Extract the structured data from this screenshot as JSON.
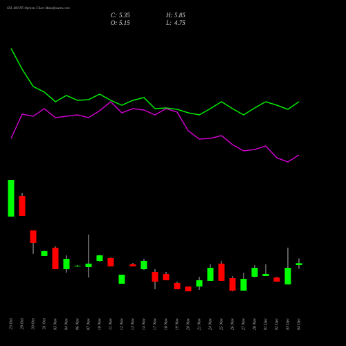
{
  "chart_data": {
    "type": "candlestick",
    "title": "OIL 400 PE Options Chart Munafasutra.com",
    "summary": [
      {
        "label": "C:",
        "value": 5.35
      },
      {
        "label": "H:",
        "value": 5.85
      },
      {
        "label": "O:",
        "value": 5.15
      },
      {
        "label": "L:",
        "value": 4.75
      }
    ],
    "categories": [
      "23 Oct",
      "28 Oct",
      "30 Oct",
      "31 Oct",
      "03 Nov",
      "04 Nov",
      "06 Nov",
      "07 Nov",
      "10 Nov",
      "11 Nov",
      "12 Nov",
      "13 Nov",
      "14 Nov",
      "17 Nov",
      "18 Nov",
      "19 Nov",
      "20 Nov",
      "21 Nov",
      "24 Nov",
      "25 Nov",
      "26 Nov",
      "27 Nov",
      "28 Nov",
      "01 Dec",
      "02 Dec",
      "03 Dec",
      "04 Dec"
    ],
    "open": [
      10.28,
      12.48,
      8.82,
      6.11,
      6.99,
      4.71,
      5.01,
      4.93,
      5.59,
      5.89,
      3.17,
      5.23,
      4.71,
      4.42,
      4.2,
      3.25,
      2.88,
      2.88,
      3.47,
      5.3,
      3.76,
      2.44,
      3.91,
      3.98,
      3.83,
      3.1,
      5.15
    ],
    "high": [
      14.17,
      12.78,
      8.82,
      6.69,
      7.13,
      6.18,
      5.15,
      8.38,
      6.25,
      5.96,
      4.13,
      5.37,
      5.81,
      4.71,
      4.42,
      3.39,
      2.88,
      3.91,
      5.23,
      5.59,
      3.98,
      4.35,
      5.15,
      5.23,
      3.91,
      6.99,
      5.85
    ],
    "low": [
      10.28,
      10.36,
      6.33,
      6.11,
      4.71,
      4.35,
      4.97,
      3.83,
      5.52,
      5.01,
      3.17,
      5.01,
      4.64,
      2.59,
      3.54,
      2.59,
      2.37,
      2.51,
      3.47,
      3.47,
      2.37,
      2.44,
      3.83,
      3.98,
      3.39,
      3.1,
      4.75
    ],
    "close": [
      14.17,
      10.36,
      7.5,
      6.62,
      4.71,
      5.81,
      5.08,
      5.3,
      6.18,
      5.01,
      4.13,
      5.01,
      5.59,
      3.39,
      3.54,
      2.59,
      2.37,
      3.54,
      4.86,
      3.47,
      2.44,
      3.69,
      4.86,
      4.2,
      3.39,
      4.86,
      5.35
    ],
    "up_color": "#00ff00",
    "down_color": "#ff0000",
    "ylim": [
      2,
      16
    ],
    "y2lim": [
      0,
      100
    ],
    "series": [
      {
        "color": "#00ee00",
        "axis": "y2",
        "values": [
          90,
          75,
          62.5,
          58.5,
          51.5,
          56,
          52.5,
          53,
          57,
          52.5,
          49,
          52.5,
          54.5,
          46.5,
          47,
          46,
          43.5,
          42,
          46.5,
          51.5,
          46.5,
          42,
          47,
          51.5,
          49,
          46,
          51.5
        ]
      },
      {
        "color": "#cc00cc",
        "axis": "y2",
        "values": [
          25,
          42.5,
          41,
          46.5,
          40,
          41,
          42,
          40,
          45,
          51.5,
          43.5,
          46.5,
          45.5,
          42,
          46.5,
          44,
          30.5,
          24.5,
          25,
          27,
          20.5,
          16,
          17,
          19.5,
          11,
          8,
          13
        ]
      }
    ]
  }
}
